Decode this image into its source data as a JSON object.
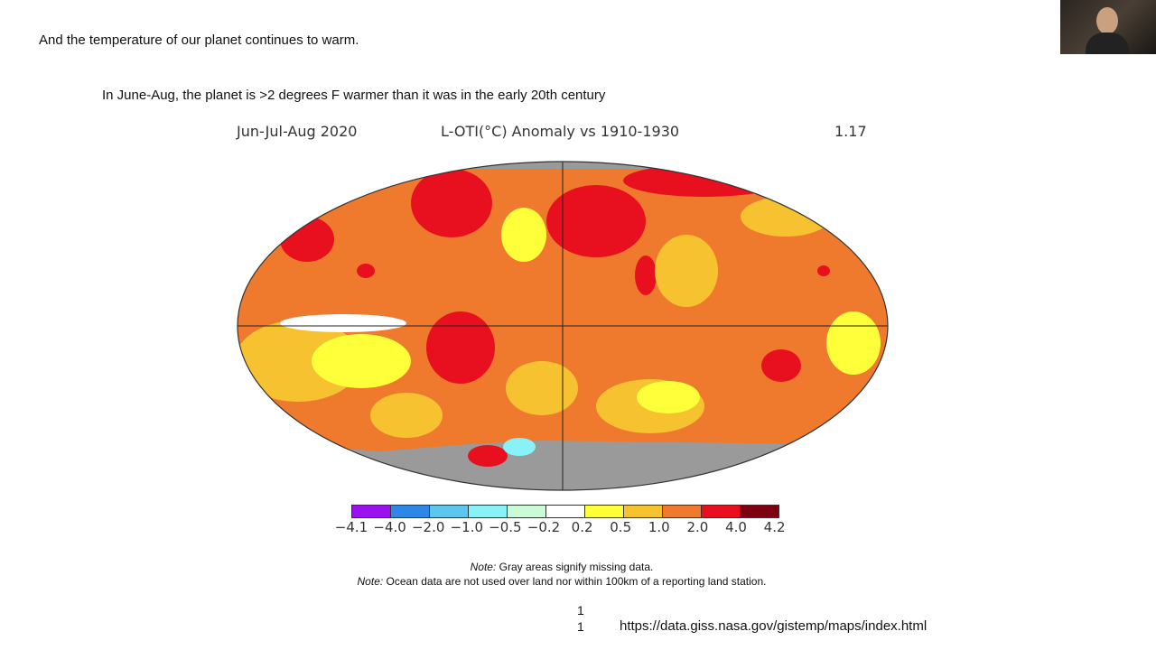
{
  "slide": {
    "headline": "And the temperature of our planet continues to warm.",
    "subhead": "In June-Aug, the planet is >2 degrees F warmer than it was in the early 20th century",
    "page_numbers": [
      "1",
      "1"
    ],
    "source_url": "https://data.giss.nasa.gov/gistemp/maps/index.html"
  },
  "map": {
    "period": "Jun-Jul-Aug 2020",
    "title": "L-OTI(°C) Anomaly vs 1910-1930",
    "global_mean": "1.17",
    "colorbar": {
      "ticks": [
        "−4.1",
        "−4.0",
        "−2.0",
        "−1.0",
        "−0.5",
        "−0.2",
        "0.2",
        "0.5",
        "1.0",
        "2.0",
        "4.0",
        "4.2"
      ],
      "colors": [
        "#9a10ee",
        "#2e86e6",
        "#5cc6ee",
        "#88f2f8",
        "#cafad6",
        "#ffffff",
        "#ffff3a",
        "#f6c230",
        "#ef7a2e",
        "#e8101e",
        "#7e0010"
      ]
    },
    "missing_color": "#9a9a9a",
    "notes": [
      {
        "label": "Note:",
        "text": " Gray areas signify missing data."
      },
      {
        "label": "Note:",
        "text": " Ocean data are not used over land nor within 100km of a reporting land station."
      }
    ]
  },
  "webcam": {
    "icon": "presenter-video"
  }
}
